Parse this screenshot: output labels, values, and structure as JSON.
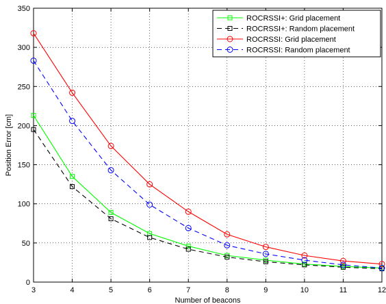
{
  "chart_data": {
    "type": "line",
    "title": "",
    "xlabel": "Number of beacons",
    "ylabel": "Position Error [cm]",
    "xlim": [
      3,
      12
    ],
    "ylim": [
      0,
      350
    ],
    "xticks": [
      3,
      4,
      5,
      6,
      7,
      8,
      9,
      10,
      11,
      12
    ],
    "yticks": [
      0,
      50,
      100,
      150,
      200,
      250,
      300,
      350
    ],
    "grid": true,
    "legend_position": "top-right",
    "x": [
      3,
      4,
      5,
      6,
      7,
      8,
      9,
      10,
      11,
      12
    ],
    "series": [
      {
        "name": "ROCRSSI+: Grid placement",
        "color": "#00ff00",
        "line_style": "solid",
        "marker": "square",
        "values": [
          213,
          135,
          89,
          62,
          46,
          34,
          28,
          23,
          20,
          18
        ]
      },
      {
        "name": "ROCRSSI+: Random placement",
        "color": "#000000",
        "line_style": "dashed",
        "marker": "square",
        "values": [
          195,
          122,
          81,
          57,
          42,
          32,
          26,
          22,
          19,
          17
        ]
      },
      {
        "name": "ROCRSSI: Grid placement",
        "color": "#ff0000",
        "line_style": "solid",
        "marker": "circle",
        "values": [
          318,
          242,
          174,
          125,
          90,
          61,
          45,
          34,
          27,
          23
        ]
      },
      {
        "name": "ROCRSSI: Random placement",
        "color": "#0000ff",
        "line_style": "dashed",
        "marker": "circle",
        "values": [
          283,
          206,
          143,
          99,
          69,
          47,
          36,
          28,
          22,
          18
        ]
      }
    ]
  }
}
